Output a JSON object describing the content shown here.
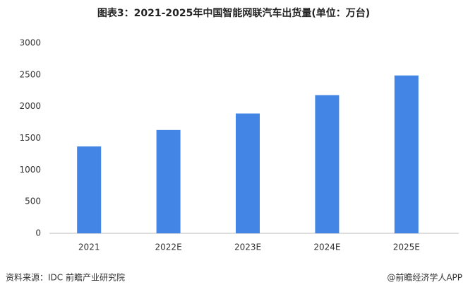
{
  "chart_data": {
    "type": "bar",
    "title": "图表3：2021-2025年中国智能网联汽车出货量(单位：万台)",
    "categories": [
      "2021",
      "2022E",
      "2023E",
      "2024E",
      "2025E"
    ],
    "values": [
      1370,
      1630,
      1890,
      2180,
      2490
    ],
    "color": "#4285e4",
    "ylim": [
      0,
      3000
    ],
    "yticks": [
      0,
      500,
      1000,
      1500,
      2000,
      2500,
      3000
    ],
    "grid": false,
    "source": "资料来源：IDC 前瞻产业研究院",
    "credit": "@前瞻经济学人APP"
  }
}
